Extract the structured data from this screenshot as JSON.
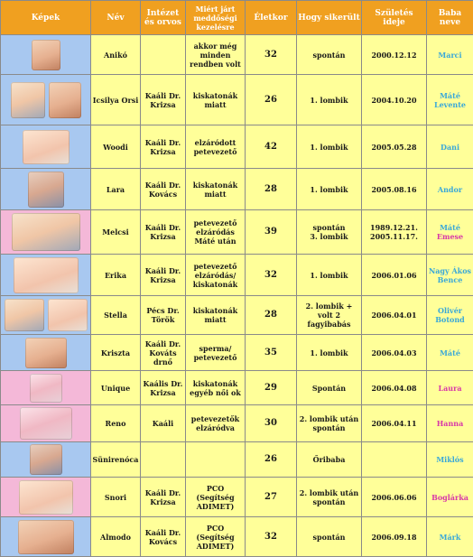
{
  "headers": {
    "kepek": "Képek",
    "nev": "Név",
    "intezet": "Intézet és orvos",
    "miert": "Miért járt meddőségi kezelésre",
    "eletkor": "Életkor",
    "hogy": "Hogy sikerült",
    "szules": "Születés ideje",
    "baba": "Baba neve"
  },
  "rows": [
    {
      "nev": "Anikó",
      "intezet": "",
      "miert": "akkor még minden rendben volt",
      "eletkor": "32",
      "hogy": "spontán",
      "szules": "2000.12.12",
      "baba": "Marci"
    },
    {
      "nev": "Icsilya Orsi",
      "intezet": "Kaáli Dr. Krizsa",
      "miert": "kiskatonák miatt",
      "eletkor": "26",
      "hogy": "1. lombik",
      "szules": "2004.10.20",
      "baba": "Máté Levente"
    },
    {
      "nev": "Woodi",
      "intezet": "Kaáli Dr. Krizsa",
      "miert": "elzáródott petevezető",
      "eletkor": "42",
      "hogy": "1. lombik",
      "szules": "2005.05.28",
      "baba": "Dani"
    },
    {
      "nev": "Lara",
      "intezet": "Kaáli Dr. Kovács",
      "miert": "kiskatonák miatt",
      "eletkor": "28",
      "hogy": "1. lombik",
      "szules": "2005.08.16",
      "baba": "Andor"
    },
    {
      "nev": "Melcsi",
      "intezet": "Kaáli Dr. Krizsa",
      "miert": "petevezető elzáródás Máté után",
      "eletkor": "39",
      "hogy": "spontán\n3. lombik",
      "szules": "1989.12.21.\n2005.11.17.",
      "baba": "Máté\nEmese"
    },
    {
      "nev": "Erika",
      "intezet": "Kaáli Dr. Krizsa",
      "miert": "petevezető elzáródás/ kiskatonák",
      "eletkor": "32",
      "hogy": "1. lombik",
      "szules": "2006.01.06",
      "baba": "Nagy Ákos Bence"
    },
    {
      "nev": "Stella",
      "intezet": "Pécs Dr. Török",
      "miert": "kiskatonák miatt",
      "eletkor": "28",
      "hogy": "2. lombik + volt 2 fagyibabás",
      "szules": "2006.04.01",
      "baba": "Olivér Botond"
    },
    {
      "nev": "Kriszta",
      "intezet": "Kaáli Dr. Kováts drnő",
      "miert": "sperma/ petevezető",
      "eletkor": "35",
      "hogy": "1. lombik",
      "szules": "2006.04.03",
      "baba": "Máté"
    },
    {
      "nev": "Unique",
      "intezet": "Kaális Dr. Krizsa",
      "miert": "kiskatonák egyéb női ok",
      "eletkor": "29",
      "hogy": "Spontán",
      "szules": "2006.04.08",
      "baba": "Laura"
    },
    {
      "nev": "Reno",
      "intezet": "Kaáli",
      "miert": "petevezetők elzáródva",
      "eletkor": "30",
      "hogy": "2. lombik után spontán",
      "szules": "2006.04.11",
      "baba": "Hanna"
    },
    {
      "nev": "Sünirenóca",
      "intezet": "",
      "miert": "",
      "eletkor": "26",
      "hogy": "Őribaba",
      "szules": "",
      "baba": "Miklós"
    },
    {
      "nev": "Snori",
      "intezet": "Kaáli Dr. Krizsa",
      "miert": "PCO (Segítség ADIMET)",
      "eletkor": "27",
      "hogy": "2. lombik után spontán",
      "szules": "2006.06.06",
      "baba": "Boglárka"
    },
    {
      "nev": "Almodo",
      "intezet": "Kaáli Dr. Kovács",
      "miert": "PCO (Segítség ADIMET)",
      "eletkor": "32",
      "hogy": "spontán",
      "szules": "2006.09.18",
      "baba": "Márk"
    }
  ],
  "colors": {
    "header_bg": "#f0a020",
    "cell_bg": "#ffff99",
    "pic_blue": "#a8c8f0",
    "pic_pink": "#f4b8d8",
    "boy": "#3aa8d8",
    "girl": "#d838a8"
  }
}
